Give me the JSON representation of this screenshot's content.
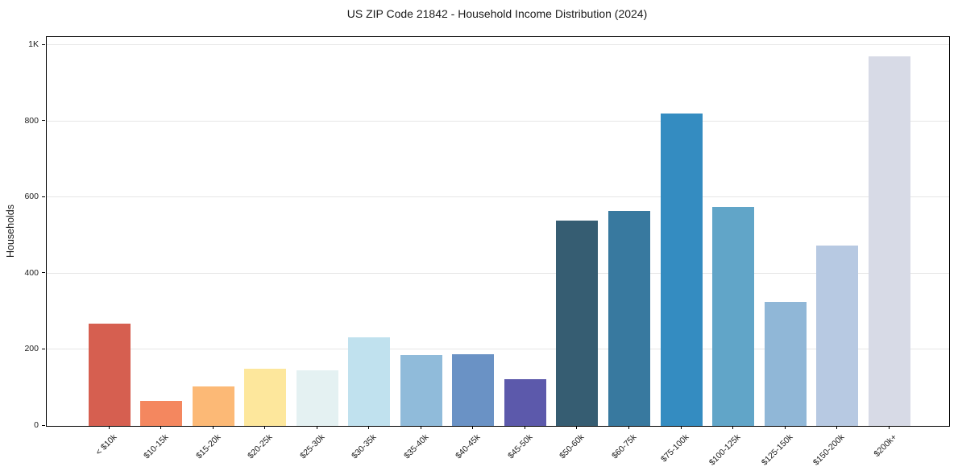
{
  "chart_data": {
    "type": "bar",
    "title": "US ZIP Code 21842 - Household Income Distribution (2024)",
    "ylabel": "Households",
    "xlabel": "",
    "categories": [
      "< $10k",
      "$10-15k",
      "$15-20k",
      "$20-25k",
      "$25-30k",
      "$30-35k",
      "$35-40k",
      "$40-45k",
      "$45-50k",
      "$50-60k",
      "$60-75k",
      "$75-100k",
      "$100-125k",
      "$125-150k",
      "$150-200k",
      "$200k+"
    ],
    "values": [
      268,
      65,
      104,
      151,
      147,
      232,
      187,
      188,
      123,
      540,
      565,
      821,
      576,
      326,
      475,
      972
    ],
    "bar_colors": [
      "#d65f50",
      "#f4875f",
      "#fcb976",
      "#fde79c",
      "#e4f1f2",
      "#c0e1ee",
      "#90bbda",
      "#6a92c5",
      "#5c59ab",
      "#365d72",
      "#38799f",
      "#348cc1",
      "#61a5c8",
      "#90b7d7",
      "#b7c9e2",
      "#d7dae6"
    ],
    "yticks": [
      {
        "value": 0,
        "label": "0"
      },
      {
        "value": 200,
        "label": "200"
      },
      {
        "value": 400,
        "label": "400"
      },
      {
        "value": 600,
        "label": "600"
      },
      {
        "value": 800,
        "label": "800"
      },
      {
        "value": 1000,
        "label": "1K"
      }
    ],
    "ylim": [
      0,
      1022
    ],
    "grid": "horizontal",
    "legend": false,
    "background": "#ffffff",
    "gridline_color": "#e6e6e6",
    "spine_color": "#000000",
    "text_color": "#1b1b1b"
  }
}
